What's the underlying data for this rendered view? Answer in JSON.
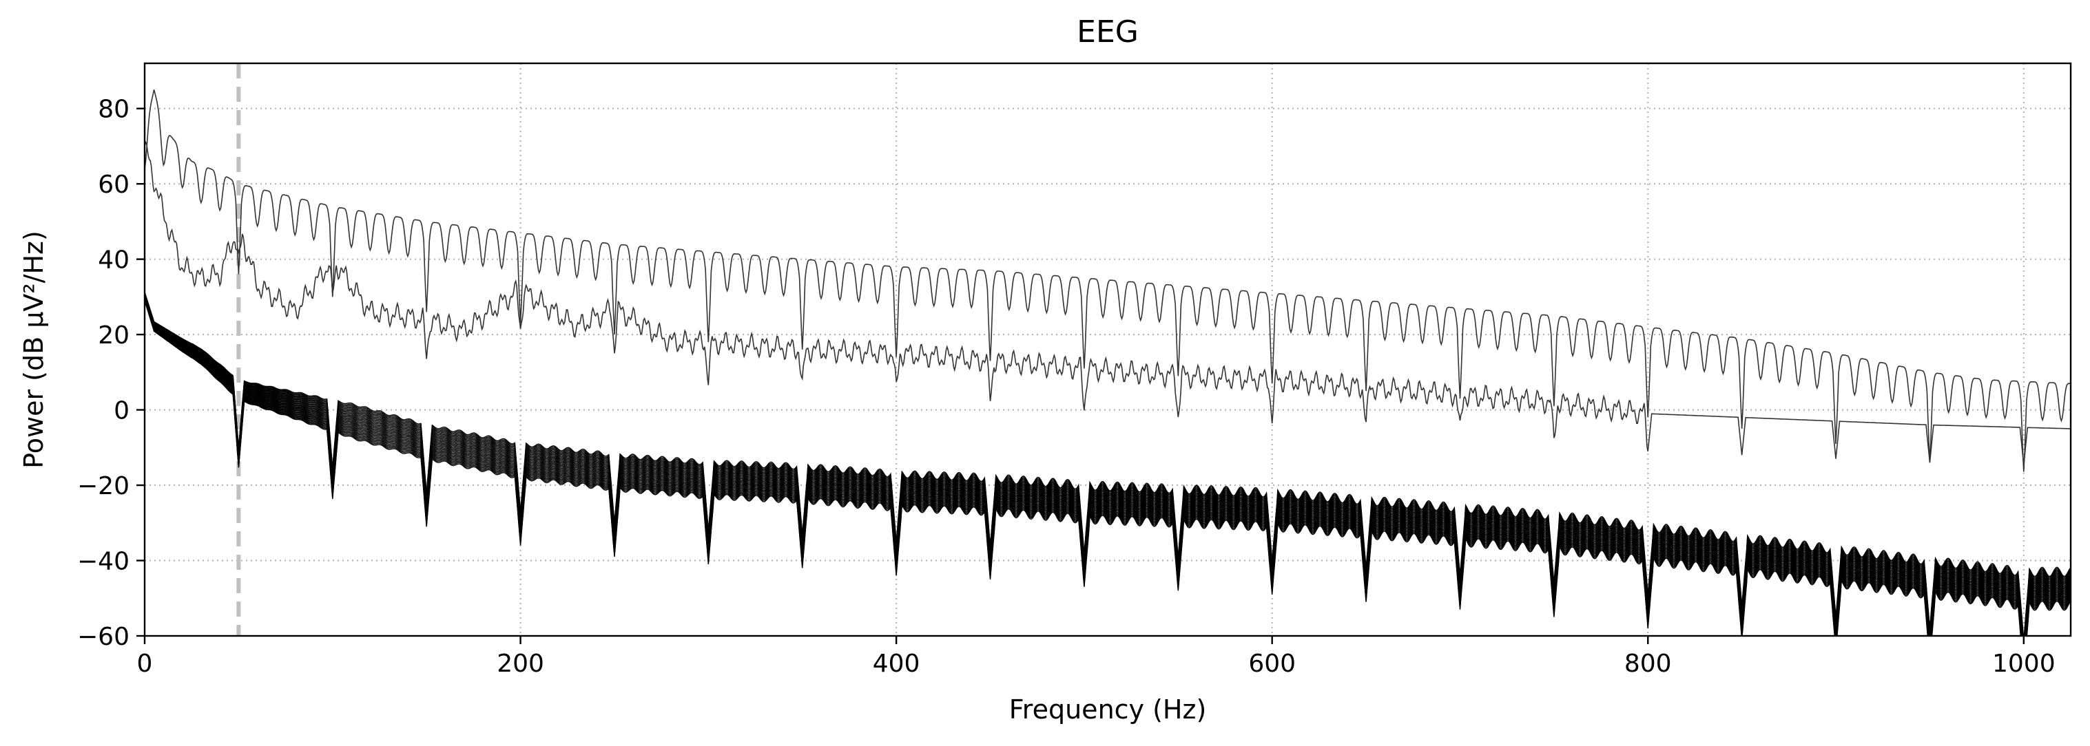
{
  "chart_data": {
    "type": "line",
    "title": "EEG",
    "xlabel": "Frequency (Hz)",
    "ylabel": "Power (dB µV²/Hz)",
    "xlim": [
      0,
      1025
    ],
    "ylim": [
      -60,
      92
    ],
    "xticks": [
      0,
      200,
      400,
      600,
      800,
      1000
    ],
    "xtick_labels": [
      "0",
      "200",
      "400",
      "600",
      "800",
      "1000"
    ],
    "yticks": [
      -60,
      -40,
      -20,
      0,
      20,
      40,
      60,
      80
    ],
    "ytick_labels": [
      "−60",
      "−40",
      "−20",
      "0",
      "20",
      "40",
      "60",
      "80"
    ],
    "grid": true,
    "grid_style": "dotted",
    "vlines": [
      {
        "x": 50,
        "style": "dashed",
        "color": "#c0c0c0"
      }
    ],
    "harmonic_spacing_hz": 50,
    "series": [
      {
        "role": "upper-outlier-channel",
        "color": "#333333",
        "points": [
          [
            0,
            74
          ],
          [
            5,
            85
          ],
          [
            10,
            75
          ],
          [
            25,
            66
          ],
          [
            40,
            63
          ],
          [
            50,
            60
          ],
          [
            100,
            54
          ],
          [
            150,
            50
          ],
          [
            200,
            47
          ],
          [
            250,
            44
          ],
          [
            300,
            42
          ],
          [
            350,
            40
          ],
          [
            400,
            38
          ],
          [
            450,
            37
          ],
          [
            500,
            35
          ],
          [
            550,
            33
          ],
          [
            600,
            31
          ],
          [
            650,
            29
          ],
          [
            700,
            27
          ],
          [
            750,
            25
          ],
          [
            800,
            22
          ],
          [
            850,
            19
          ],
          [
            900,
            15
          ],
          [
            950,
            10
          ],
          [
            980,
            8
          ],
          [
            1025,
            7
          ]
        ],
        "comb_depth_db": 10,
        "comb_period_hz": 10
      },
      {
        "role": "second-outlier-channel",
        "color": "#333333",
        "points": [
          [
            0,
            70
          ],
          [
            10,
            52
          ],
          [
            20,
            38
          ],
          [
            30,
            35
          ],
          [
            40,
            36
          ],
          [
            50,
            49
          ],
          [
            60,
            33
          ],
          [
            80,
            26
          ],
          [
            100,
            40
          ],
          [
            120,
            26
          ],
          [
            150,
            24
          ],
          [
            170,
            21
          ],
          [
            200,
            32
          ],
          [
            230,
            22
          ],
          [
            250,
            27
          ],
          [
            280,
            18
          ],
          [
            300,
            18
          ],
          [
            350,
            16
          ],
          [
            400,
            15
          ],
          [
            450,
            13
          ],
          [
            500,
            11
          ],
          [
            550,
            9
          ],
          [
            600,
            8
          ],
          [
            650,
            6
          ],
          [
            700,
            4
          ],
          [
            750,
            2
          ],
          [
            800,
            -1
          ],
          [
            850,
            -2
          ],
          [
            900,
            -3
          ],
          [
            950,
            -4
          ],
          [
            1025,
            -5
          ]
        ]
      },
      {
        "role": "main-channel-bundle",
        "color": "#000000",
        "channel_count": 28,
        "points": [
          [
            0,
            30
          ],
          [
            5,
            22
          ],
          [
            20,
            17
          ],
          [
            30,
            14
          ],
          [
            50,
            5
          ],
          [
            100,
            -2
          ],
          [
            150,
            -9
          ],
          [
            200,
            -14
          ],
          [
            250,
            -17
          ],
          [
            300,
            -19
          ],
          [
            350,
            -20
          ],
          [
            400,
            -22
          ],
          [
            450,
            -23
          ],
          [
            500,
            -25
          ],
          [
            550,
            -26
          ],
          [
            600,
            -27
          ],
          [
            650,
            -29
          ],
          [
            700,
            -31
          ],
          [
            750,
            -33
          ],
          [
            800,
            -36
          ],
          [
            850,
            -39
          ],
          [
            900,
            -42
          ],
          [
            950,
            -45
          ],
          [
            1000,
            -48
          ],
          [
            1025,
            -48
          ]
        ],
        "bundle_spread_db": [
          -4,
          5
        ]
      }
    ]
  }
}
